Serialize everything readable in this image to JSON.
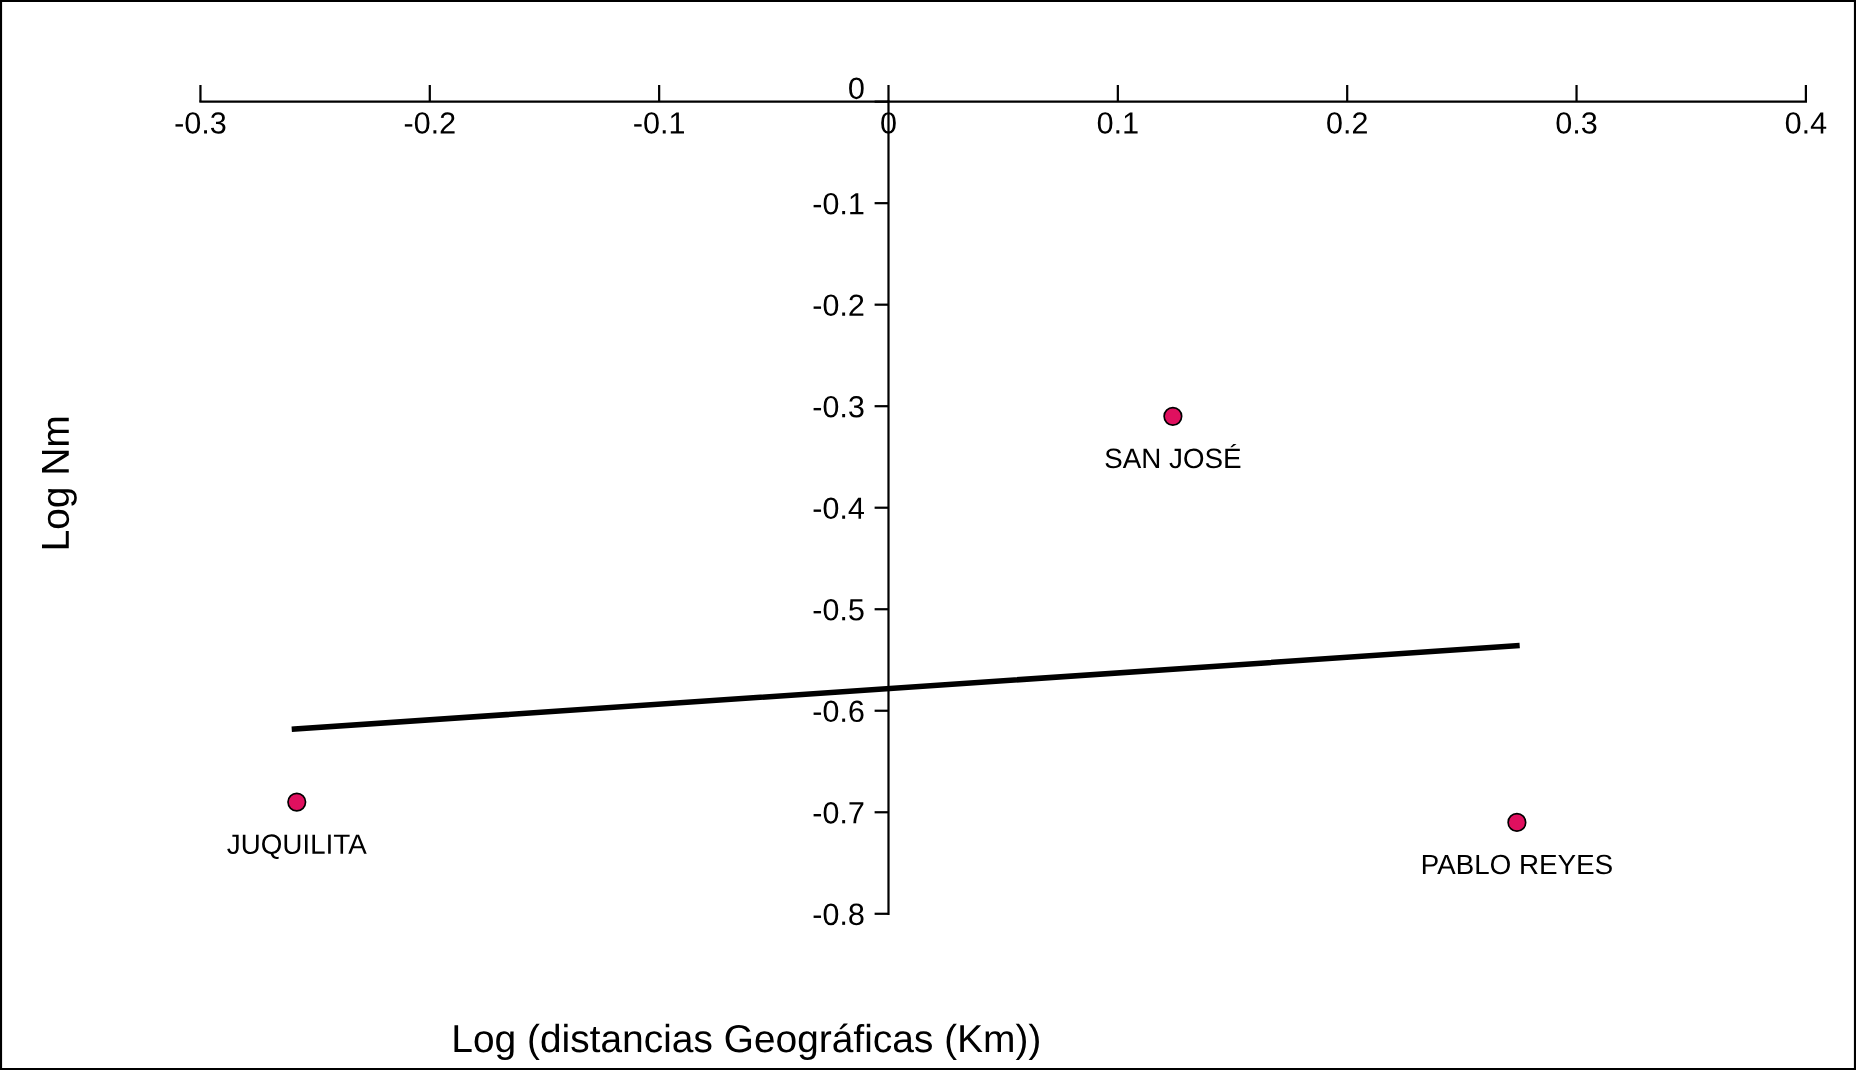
{
  "chart_data": {
    "type": "scatter",
    "xlabel": "Log (distancias Geográficas (Km))",
    "ylabel": "Log Nm",
    "series": [
      {
        "color": "#e0105f",
        "x": [
          -0.258,
          0.124,
          0.274
        ],
        "values": [
          -0.69,
          -0.31,
          -0.71
        ],
        "marker": "circle"
      },
      {
        "type": "line",
        "color": "#000000",
        "x": [
          -0.259,
          0.274
        ],
        "values": [
          -0.618,
          -0.536
        ],
        "marker": "none",
        "line_style": "solid"
      }
    ],
    "annotations": [
      {
        "text": "JUQUILITA",
        "x": -0.258,
        "y": -0.69
      },
      {
        "text": "SAN JOSÉ",
        "x": 0.124,
        "y": -0.31
      },
      {
        "text": "PABLO REYES",
        "x": 0.274,
        "y": -0.71
      }
    ],
    "xlim": [
      -0.3,
      0.4
    ],
    "ylim": [
      -0.8,
      0
    ],
    "xticks": [
      -0.3,
      -0.2,
      -0.1,
      0,
      0.1,
      0.2,
      0.3,
      0.4
    ],
    "yticks": [
      -0.8,
      -0.7,
      -0.6,
      -0.5,
      -0.4,
      -0.3,
      -0.2,
      -0.1,
      0
    ],
    "grid": false,
    "legend": false
  }
}
